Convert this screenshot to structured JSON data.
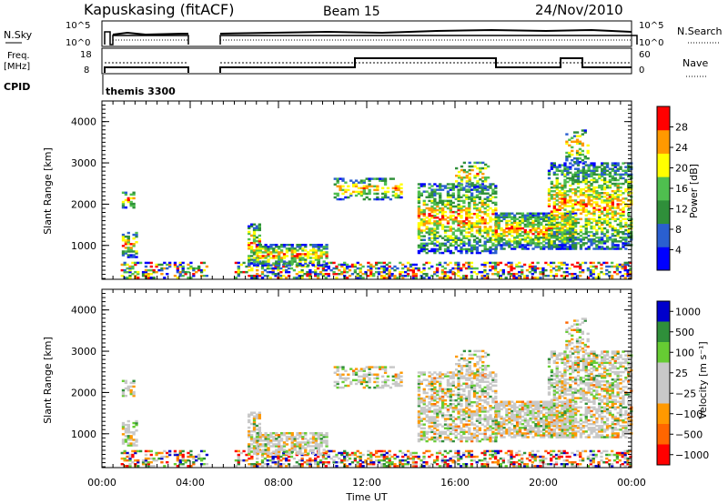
{
  "header": {
    "station": "Kapuskasing (fitACF)",
    "beam": "Beam 15",
    "date": "24/Nov/2010"
  },
  "top_panels": {
    "nsky_label": "N.Sky",
    "nsky_ticks": [
      "10^5",
      "10^0"
    ],
    "nsearch_label": "N.Search",
    "freq_label_line1": "Freq.",
    "freq_label_line2": "[MHz]",
    "freq_ticks": [
      "18",
      "8"
    ],
    "nave_label": "Nave",
    "nave_ticks": [
      "60",
      "0"
    ],
    "cpid_label": "CPID",
    "cpid_value": "themis 3300"
  },
  "chart_data": [
    {
      "type": "heatmap",
      "title": "Power",
      "xlabel": "Time UT",
      "ylabel": "Slant Range [km]",
      "x_ticks": [
        "00:00",
        "04:00",
        "08:00",
        "12:00",
        "16:00",
        "20:00",
        "00:00"
      ],
      "y_ticks": [
        "1000",
        "2000",
        "3000",
        "4000"
      ],
      "ylim": [
        180,
        4500
      ],
      "xlim_hours": [
        0,
        24
      ],
      "colorbar_label": "Power [dB]",
      "colorbar_ticks": [
        "4",
        "8",
        "12",
        "16",
        "20",
        "24",
        "28"
      ],
      "colorbar_colors": [
        "#0000ff",
        "#2a5fd0",
        "#2f8f3a",
        "#4fbf4f",
        "#ffff00",
        "#ff9900",
        "#ff0000"
      ],
      "data_gaps_hours": [
        [
          0,
          0.8
        ],
        [
          4.8,
          6.0
        ]
      ]
    },
    {
      "type": "heatmap",
      "title": "Velocity",
      "xlabel": "Time UT",
      "ylabel": "Slant Range [km]",
      "x_ticks": [
        "00:00",
        "04:00",
        "08:00",
        "12:00",
        "16:00",
        "20:00",
        "00:00"
      ],
      "y_ticks": [
        "1000",
        "2000",
        "3000",
        "4000"
      ],
      "ylim": [
        180,
        4500
      ],
      "colorbar_label": "Velocity [m s⁻¹]",
      "colorbar_ticks": [
        "1000",
        "500",
        "100",
        "25",
        "−25",
        "−100",
        "−500",
        "−1000"
      ],
      "colorbar_colors": [
        "#0000cc",
        "#2f8f3a",
        "#66cc33",
        "#c8c8c8",
        "#c8c8c8",
        "#ff9900",
        "#ff6600",
        "#ff0000"
      ]
    }
  ]
}
